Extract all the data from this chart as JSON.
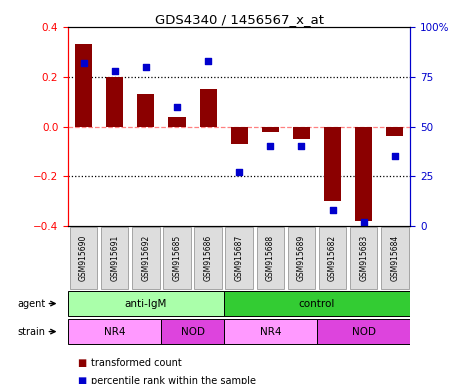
{
  "title": "GDS4340 / 1456567_x_at",
  "samples": [
    "GSM915690",
    "GSM915691",
    "GSM915692",
    "GSM915685",
    "GSM915686",
    "GSM915687",
    "GSM915688",
    "GSM915689",
    "GSM915682",
    "GSM915683",
    "GSM915684"
  ],
  "bar_values": [
    0.33,
    0.2,
    0.13,
    0.04,
    0.15,
    -0.07,
    -0.02,
    -0.05,
    -0.3,
    -0.38,
    -0.04
  ],
  "blue_values": [
    82,
    78,
    80,
    60,
    83,
    27,
    40,
    40,
    8,
    2,
    35
  ],
  "bar_color": "#8B0000",
  "blue_color": "#0000CD",
  "ylim_left": [
    -0.4,
    0.4
  ],
  "ylim_right": [
    0,
    100
  ],
  "yticks_left": [
    -0.4,
    -0.2,
    0.0,
    0.2,
    0.4
  ],
  "yticks_right": [
    0,
    25,
    50,
    75,
    100
  ],
  "ytick_labels_right": [
    "0",
    "25",
    "50",
    "75",
    "100%"
  ],
  "agent_labels": [
    {
      "label": "anti-IgM",
      "start": 0,
      "end": 5,
      "color": "#AAFFAA"
    },
    {
      "label": "control",
      "start": 5,
      "end": 11,
      "color": "#33CC33"
    }
  ],
  "strain_labels": [
    {
      "label": "NR4",
      "start": 0,
      "end": 3,
      "color": "#FF99FF"
    },
    {
      "label": "NOD",
      "start": 3,
      "end": 5,
      "color": "#DD44DD"
    },
    {
      "label": "NR4",
      "start": 5,
      "end": 8,
      "color": "#FF99FF"
    },
    {
      "label": "NOD",
      "start": 8,
      "end": 11,
      "color": "#DD44DD"
    }
  ],
  "legend_items": [
    {
      "label": "transformed count",
      "color": "#8B0000"
    },
    {
      "label": "percentile rank within the sample",
      "color": "#0000CD"
    }
  ],
  "bg_color": "#FFFFFF",
  "zero_line_color": "#FF8080",
  "dotted_line_color": "#000000",
  "left_axis_color": "red",
  "right_axis_color": "#0000CD"
}
